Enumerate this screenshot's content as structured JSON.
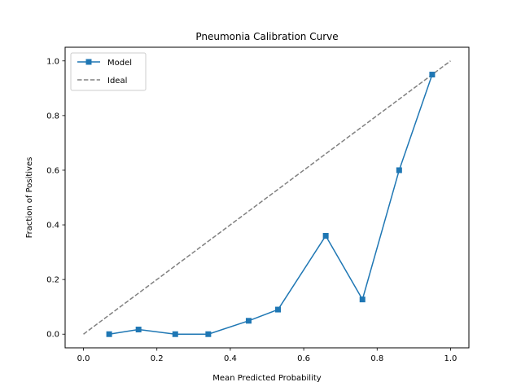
{
  "chart_data": {
    "type": "line",
    "title": "Pneumonia Calibration Curve",
    "xlabel": "Mean Predicted Probability",
    "ylabel": "Fraction of Positives",
    "xlim": [
      -0.05,
      1.05
    ],
    "ylim": [
      -0.05,
      1.05
    ],
    "xticks": [
      0.0,
      0.2,
      0.4,
      0.6,
      0.8,
      1.0
    ],
    "xtick_labels": [
      "0.0",
      "0.2",
      "0.4",
      "0.6",
      "0.8",
      "1.0"
    ],
    "yticks": [
      0.0,
      0.2,
      0.4,
      0.6,
      0.8,
      1.0
    ],
    "ytick_labels": [
      "0.0",
      "0.2",
      "0.4",
      "0.6",
      "0.8",
      "1.0"
    ],
    "grid": false,
    "legend_position": "top-left",
    "series": [
      {
        "name": "Model",
        "style": "solid-square-markers",
        "color": "#1f77b4",
        "x": [
          0.07,
          0.15,
          0.25,
          0.34,
          0.45,
          0.53,
          0.66,
          0.76,
          0.86,
          0.95
        ],
        "y": [
          0.0,
          0.017,
          0.0,
          0.0,
          0.049,
          0.09,
          0.36,
          0.127,
          0.6,
          0.95
        ]
      },
      {
        "name": "Ideal",
        "style": "dashed",
        "color": "#808080",
        "x": [
          0.0,
          1.0
        ],
        "y": [
          0.0,
          1.0
        ]
      }
    ]
  }
}
